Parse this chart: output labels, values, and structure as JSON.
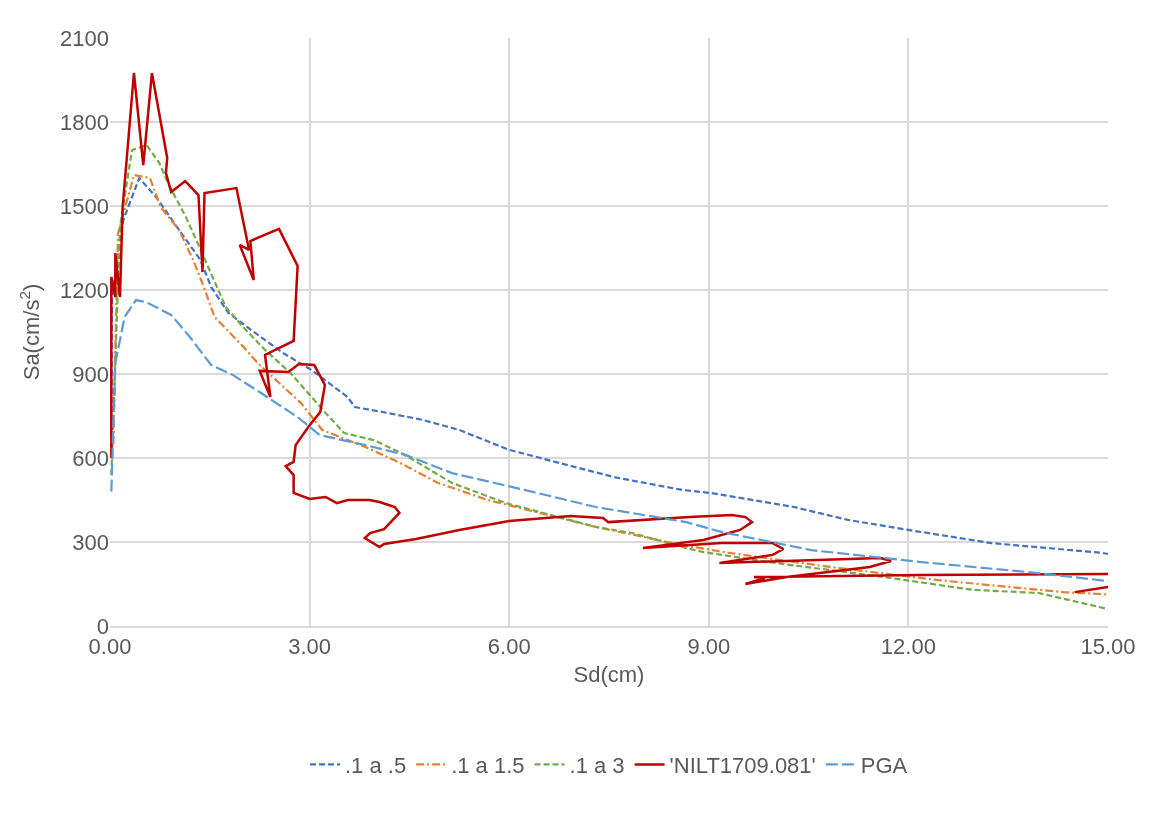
{
  "chart_data": {
    "type": "line",
    "xlabel": "Sd(cm)",
    "ylabel": "Sa(cm/s$^{2}$)",
    "xlim": [
      0,
      15
    ],
    "xticks": [
      {
        "value": 0,
        "label": "0.00"
      },
      {
        "value": 3,
        "label": "3.00"
      },
      {
        "value": 6,
        "label": "6.00"
      },
      {
        "value": 9,
        "label": "9.00"
      },
      {
        "value": 12,
        "label": "12.00"
      },
      {
        "value": 15,
        "label": "15.00"
      }
    ],
    "ylim": [
      0,
      2100
    ],
    "yticks": [
      0,
      300,
      600,
      900,
      1200,
      1500,
      1800,
      2100
    ],
    "grid": true,
    "legend": "bottom",
    "marker": "none",
    "series": [
      {
        "name": ".1 a .5",
        "color": "#4472c4",
        "line_style": "dashed",
        "x": [
          0.02,
          0.03,
          0.2,
          0.44,
          0.7,
          1.04,
          1.36,
          1.52,
          1.78,
          2.06,
          2.6,
          3.03,
          3.57,
          3.68,
          4.17,
          4.7,
          5.25,
          6.0,
          6.76,
          7.57,
          8.6,
          9.03,
          10.28,
          11.09,
          12.0,
          13.25,
          14.92,
          15.0
        ],
        "values": [
          700,
          1175,
          1450,
          1600,
          1530,
          1414,
          1307,
          1211,
          1118,
          1068,
          975,
          914,
          818,
          782,
          761,
          736,
          700,
          629,
          582,
          532,
          486,
          475,
          425,
          379,
          343,
          296,
          261,
          257
        ]
      },
      {
        "name": ".1 a 1.5",
        "color": "#ed7d31",
        "line_style": "dashdot",
        "x": [
          0.05,
          0.12,
          0.36,
          0.6,
          0.76,
          1.04,
          1.25,
          1.41,
          1.57,
          2.01,
          2.22,
          2.87,
          3.19,
          3.84,
          4.33,
          4.93,
          5.68,
          7.3,
          8.6,
          9.31,
          10.82,
          12.44,
          14.33,
          14.92,
          15.0
        ],
        "values": [
          650,
          1400,
          1611,
          1600,
          1496,
          1414,
          1307,
          1211,
          1104,
          996,
          939,
          796,
          700,
          639,
          586,
          511,
          450,
          354,
          289,
          261,
          211,
          164,
          121,
          114,
          112
        ]
      },
      {
        "name": ".1 a 3",
        "color": "#70ad47",
        "line_style": "dashed",
        "x": [
          0.02,
          0.15,
          0.33,
          0.55,
          0.74,
          0.87,
          1.14,
          1.41,
          1.74,
          2.0,
          2.33,
          2.71,
          3.24,
          3.52,
          3.96,
          4.38,
          5.14,
          5.95,
          7.3,
          7.85,
          8.6,
          8.92,
          10.0,
          11.63,
          12.97,
          13.95,
          14.87,
          15.0
        ],
        "values": [
          540,
          1425,
          1700,
          1718,
          1654,
          1582,
          1461,
          1318,
          1139,
          1068,
          986,
          904,
          761,
          689,
          664,
          618,
          511,
          439,
          354,
          332,
          282,
          264,
          225,
          175,
          129,
          118,
          68,
          60
        ]
      },
      {
        "name": "'NILT1709.081'",
        "color": "#c00000",
        "line_style": "solid",
        "x": [
          0.02,
          0.02,
          0.08,
          0.08,
          0.15,
          0.19,
          0.36,
          0.5,
          0.63,
          0.86,
          0.84,
          0.92,
          1.13,
          1.33,
          1.39,
          1.42,
          1.9,
          2.09,
          1.95,
          2.16,
          2.11,
          2.54,
          2.82,
          2.76,
          2.33,
          2.41,
          2.25,
          2.68,
          2.84,
          3.07,
          3.23,
          3.16,
          2.98,
          2.79,
          2.76,
          2.64,
          2.76,
          2.76,
          3.0,
          3.24,
          3.41,
          3.57,
          3.9,
          4.05,
          4.28,
          4.35,
          4.12,
          3.91,
          3.83,
          4.05,
          4.12,
          4.6,
          5.25,
          6.0,
          6.92,
          7.41,
          7.49,
          8.71,
          9.35,
          9.55,
          9.65,
          9.47,
          8.92,
          8.01,
          9.19,
          9.96,
          10.12,
          9.96,
          9.16,
          11.58,
          11.74,
          11.42,
          10.17,
          9.55,
          9.84,
          9.68,
          12.16,
          15.0,
          null,
          14.5,
          15.0
        ],
        "values": [
          600,
          1246,
          1175,
          1332,
          1175,
          1496,
          1975,
          1646,
          1975,
          1671,
          1618,
          1550,
          1589,
          1539,
          1264,
          1546,
          1564,
          1343,
          1361,
          1236,
          1375,
          1418,
          1286,
          1018,
          968,
          818,
          911,
          907,
          936,
          932,
          861,
          764,
          711,
          646,
          586,
          571,
          539,
          475,
          454,
          461,
          439,
          450,
          450,
          443,
          425,
          404,
          346,
          332,
          314,
          282,
          293,
          311,
          343,
          375,
          393,
          386,
          371,
          389,
          396,
          389,
          371,
          343,
          307,
          279,
          296,
          296,
          275,
          254,
          225,
          243,
          232,
          211,
          175,
          150,
          171,
          175,
          182,
          186,
          null,
          121,
          139
        ]
      },
      {
        "name": "PGA",
        "color": "#5b9bd5",
        "line_style": "longdash",
        "x": [
          0.02,
          0.08,
          0.22,
          0.39,
          0.54,
          0.92,
          1.2,
          1.52,
          1.85,
          2.27,
          2.82,
          3.15,
          3.84,
          4.44,
          5.14,
          6.23,
          7.3,
          8.66,
          9.19,
          10.54,
          12.16,
          13.78,
          14.87,
          15.0
        ],
        "values": [
          480,
          939,
          1104,
          1164,
          1157,
          1111,
          1032,
          932,
          896,
          832,
          746,
          682,
          646,
          611,
          546,
          486,
          425,
          371,
          336,
          271,
          229,
          193,
          164,
          160
        ]
      }
    ]
  }
}
